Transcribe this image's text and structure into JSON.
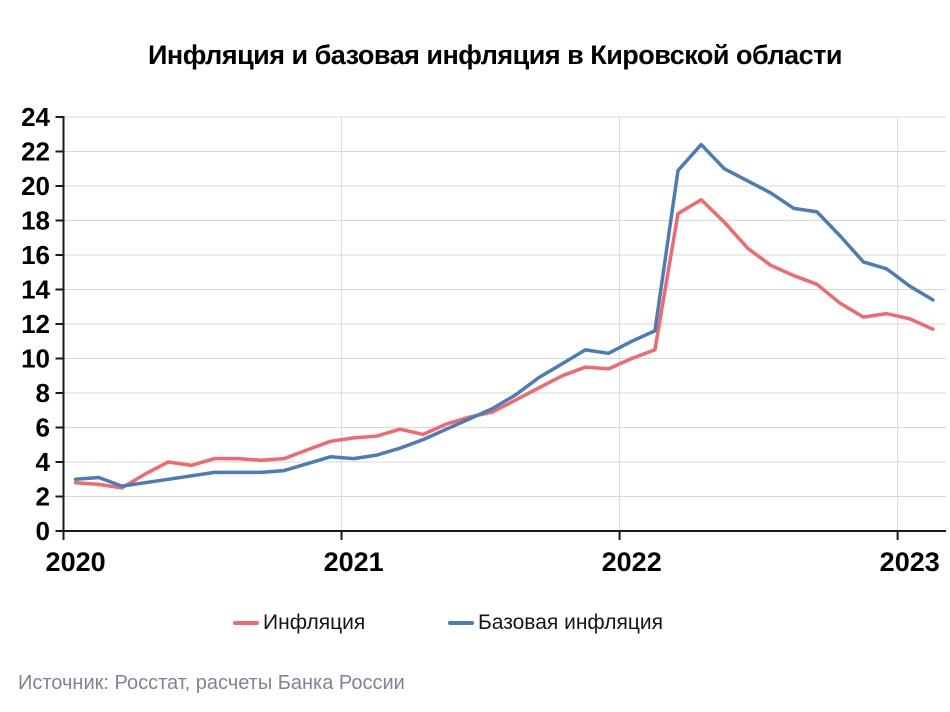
{
  "title": "Инфляция и базовая инфляция в Кировской области",
  "source": "Источник: Росстат, расчеты Банка России",
  "legend": [
    {
      "label": "Инфляция",
      "color": "#f1696e"
    },
    {
      "label": "Базовая инфляция",
      "color": "#4a7cb8"
    }
  ],
  "colors": {
    "inflation_line": "#f1696e",
    "core_inflation_line": "#4a7cb8",
    "gridline": "#d9d9d9",
    "axis": "#1a1a1a",
    "tick_label": "#000000",
    "source_text": "#7c8595"
  },
  "chart_data": {
    "type": "line",
    "title": "Инфляция и базовая инфляция в Кировской области",
    "xlabel": "",
    "ylabel": "",
    "ylim": [
      0,
      24
    ],
    "y_ticks": [
      0,
      2,
      4,
      6,
      8,
      10,
      12,
      14,
      16,
      18,
      20,
      22,
      24
    ],
    "x_tick_labels": [
      "2020",
      "2021",
      "2022",
      "2023"
    ],
    "grid": true,
    "legend_position": "bottom",
    "x": [
      "2020-01",
      "2020-02",
      "2020-03",
      "2020-04",
      "2020-05",
      "2020-06",
      "2020-07",
      "2020-08",
      "2020-09",
      "2020-10",
      "2020-11",
      "2020-12",
      "2021-01",
      "2021-02",
      "2021-03",
      "2021-04",
      "2021-05",
      "2021-06",
      "2021-07",
      "2021-08",
      "2021-09",
      "2021-10",
      "2021-11",
      "2021-12",
      "2022-01",
      "2022-02",
      "2022-03",
      "2022-04",
      "2022-05",
      "2022-06",
      "2022-07",
      "2022-08",
      "2022-09",
      "2022-10",
      "2022-11",
      "2022-12",
      "2023-01",
      "2023-02"
    ],
    "series": [
      {
        "name": "Инфляция",
        "color": "#f1696e",
        "values": [
          2.8,
          2.7,
          2.5,
          3.3,
          4.0,
          3.8,
          4.2,
          4.2,
          4.1,
          4.2,
          4.7,
          5.2,
          5.4,
          5.5,
          5.9,
          5.6,
          6.2,
          6.6,
          6.9,
          7.6,
          8.3,
          9.0,
          9.5,
          9.4,
          10.0,
          10.5,
          18.4,
          19.2,
          17.9,
          16.4,
          15.4,
          14.8,
          14.3,
          13.2,
          12.4,
          12.6,
          12.3,
          11.7
        ]
      },
      {
        "name": "Базовая инфляция",
        "color": "#4a7cb8",
        "values": [
          3.0,
          3.1,
          2.6,
          2.8,
          3.0,
          3.2,
          3.4,
          3.4,
          3.4,
          3.5,
          3.9,
          4.3,
          4.2,
          4.4,
          4.8,
          5.3,
          5.9,
          6.5,
          7.1,
          7.9,
          8.9,
          9.7,
          10.5,
          10.3,
          11.0,
          11.6,
          20.9,
          22.4,
          21.0,
          20.3,
          19.6,
          18.7,
          18.5,
          17.1,
          15.6,
          15.2,
          14.2,
          13.4
        ]
      }
    ]
  }
}
